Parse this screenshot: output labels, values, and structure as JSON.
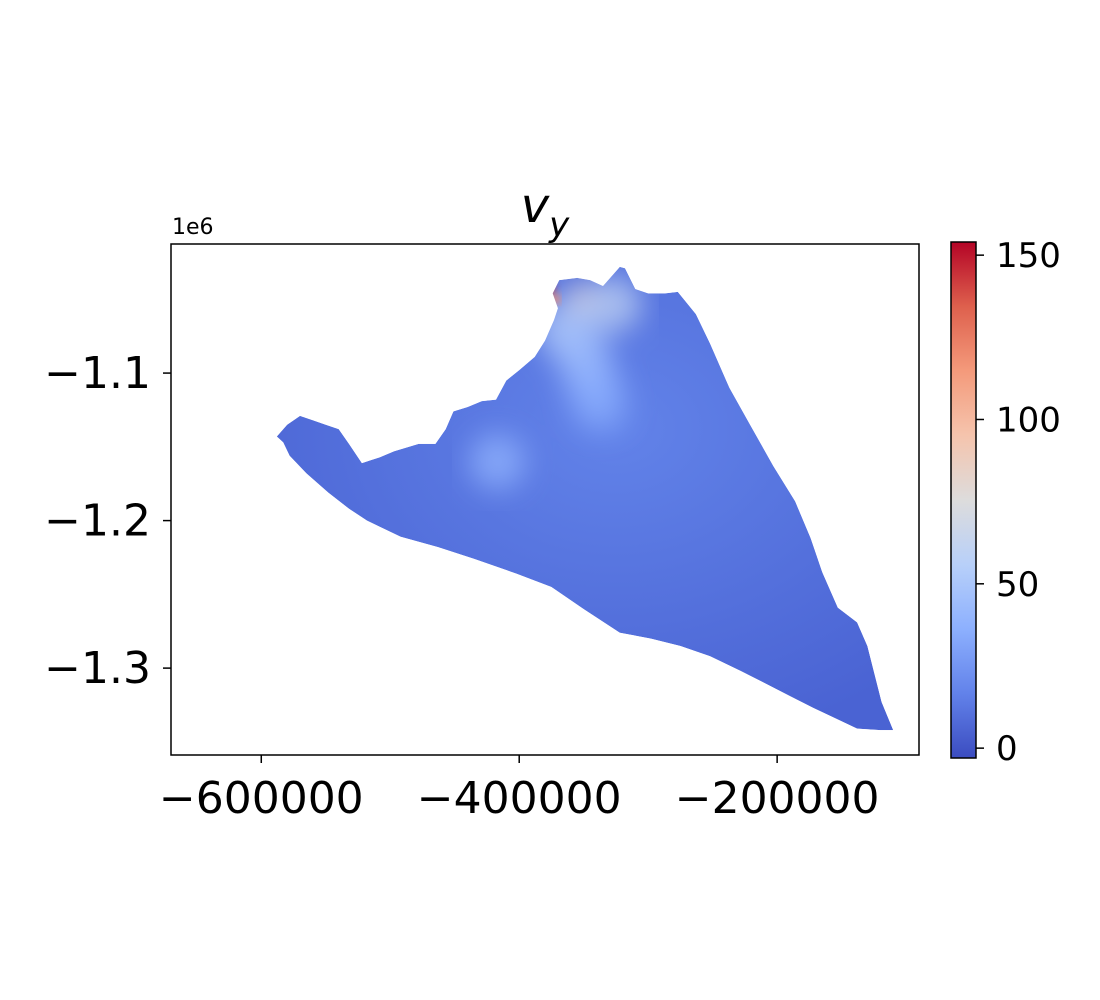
{
  "chart_data": {
    "type": "heatmap",
    "title": "v",
    "title_subscript": "y",
    "xlabel": "",
    "ylabel": "",
    "y_offset_label": "1e6",
    "xlim": [
      -670000,
      -90000
    ],
    "ylim": [
      -1.3589,
      -1.0125
    ],
    "x_ticks": [
      -600000,
      -400000,
      -200000
    ],
    "x_tick_labels": [
      "−600000",
      "−400000",
      "−200000"
    ],
    "y_ticks": [
      -1.1,
      -1.2,
      -1.3
    ],
    "y_tick_labels": [
      "−1.1",
      "−1.2",
      "−1.3"
    ],
    "colorbar": {
      "range": [
        -3,
        154
      ],
      "ticks": [
        0,
        50,
        100,
        150
      ],
      "tick_labels": [
        "0",
        "50",
        "100",
        "150"
      ],
      "colormap": "coolwarm",
      "colors": [
        "#3b4cc0",
        "#6282ea",
        "#8db0fe",
        "#b8d0f9",
        "#dddcdc",
        "#f5c4ad",
        "#f49a7b",
        "#de604d",
        "#b40426"
      ]
    },
    "grid": false,
    "legend": "none",
    "domain_boundary": [
      [
        -588000,
        -1.143
      ],
      [
        -580000,
        -1.135
      ],
      [
        -570000,
        -1.129
      ],
      [
        -560000,
        -1.132
      ],
      [
        -550000,
        -1.135
      ],
      [
        -540000,
        -1.138
      ],
      [
        -532000,
        -1.148
      ],
      [
        -522000,
        -1.161
      ],
      [
        -515000,
        -1.159
      ],
      [
        -508000,
        -1.157
      ],
      [
        -497000,
        -1.153
      ],
      [
        -478000,
        -1.148
      ],
      [
        -465000,
        -1.148
      ],
      [
        -457000,
        -1.138
      ],
      [
        -451000,
        -1.126
      ],
      [
        -440000,
        -1.123
      ],
      [
        -429000,
        -1.119
      ],
      [
        -418000,
        -1.118
      ],
      [
        -410000,
        -1.105
      ],
      [
        -400000,
        -1.098
      ],
      [
        -388000,
        -1.089
      ],
      [
        -380000,
        -1.078
      ],
      [
        -373000,
        -1.064
      ],
      [
        -370000,
        -1.056
      ],
      [
        -374000,
        -1.046
      ],
      [
        -369000,
        -1.037
      ],
      [
        -355000,
        -1.0355
      ],
      [
        -345000,
        -1.037
      ],
      [
        -335000,
        -1.041
      ],
      [
        -322000,
        -1.028
      ],
      [
        -318000,
        -1.029
      ],
      [
        -310000,
        -1.043
      ],
      [
        -300000,
        -1.046
      ],
      [
        -287000,
        -1.046
      ],
      [
        -277000,
        -1.045
      ],
      [
        -263000,
        -1.06
      ],
      [
        -252000,
        -1.08
      ],
      [
        -237000,
        -1.11
      ],
      [
        -221000,
        -1.135
      ],
      [
        -203000,
        -1.163
      ],
      [
        -186000,
        -1.187
      ],
      [
        -174000,
        -1.212
      ],
      [
        -165000,
        -1.235
      ],
      [
        -153000,
        -1.259
      ],
      [
        -138000,
        -1.269
      ],
      [
        -130000,
        -1.285
      ],
      [
        -119000,
        -1.323
      ],
      [
        -110000,
        -1.342
      ],
      [
        -120000,
        -1.342
      ],
      [
        -138000,
        -1.341
      ],
      [
        -155000,
        -1.334
      ],
      [
        -172000,
        -1.327
      ],
      [
        -190000,
        -1.319
      ],
      [
        -210000,
        -1.31
      ],
      [
        -228000,
        -1.302
      ],
      [
        -252000,
        -1.292
      ],
      [
        -275000,
        -1.285
      ],
      [
        -298000,
        -1.28
      ],
      [
        -322000,
        -1.276
      ],
      [
        -350000,
        -1.26
      ],
      [
        -375000,
        -1.245
      ],
      [
        -402000,
        -1.236
      ],
      [
        -435000,
        -1.226
      ],
      [
        -463000,
        -1.218
      ],
      [
        -492000,
        -1.211
      ],
      [
        -518000,
        -1.2
      ],
      [
        -532000,
        -1.192
      ],
      [
        -548000,
        -1.181
      ],
      [
        -565000,
        -1.168
      ],
      [
        -578000,
        -1.156
      ],
      [
        -583000,
        -1.147
      ]
    ],
    "features": [
      {
        "x": -376500,
        "y": -1.043,
        "v": 150
      },
      {
        "x": -372000,
        "y": -1.05,
        "v": 120
      },
      {
        "x": -353000,
        "y": -1.049,
        "v": 80
      },
      {
        "x": -327000,
        "y": -1.053,
        "v": 60
      },
      {
        "x": -365000,
        "y": -1.07,
        "v": 55
      },
      {
        "x": -352000,
        "y": -1.085,
        "v": 45
      },
      {
        "x": -345000,
        "y": -1.102,
        "v": 40
      },
      {
        "x": -338000,
        "y": -1.12,
        "v": 35
      },
      {
        "x": -417000,
        "y": -1.16,
        "v": 38
      }
    ]
  }
}
